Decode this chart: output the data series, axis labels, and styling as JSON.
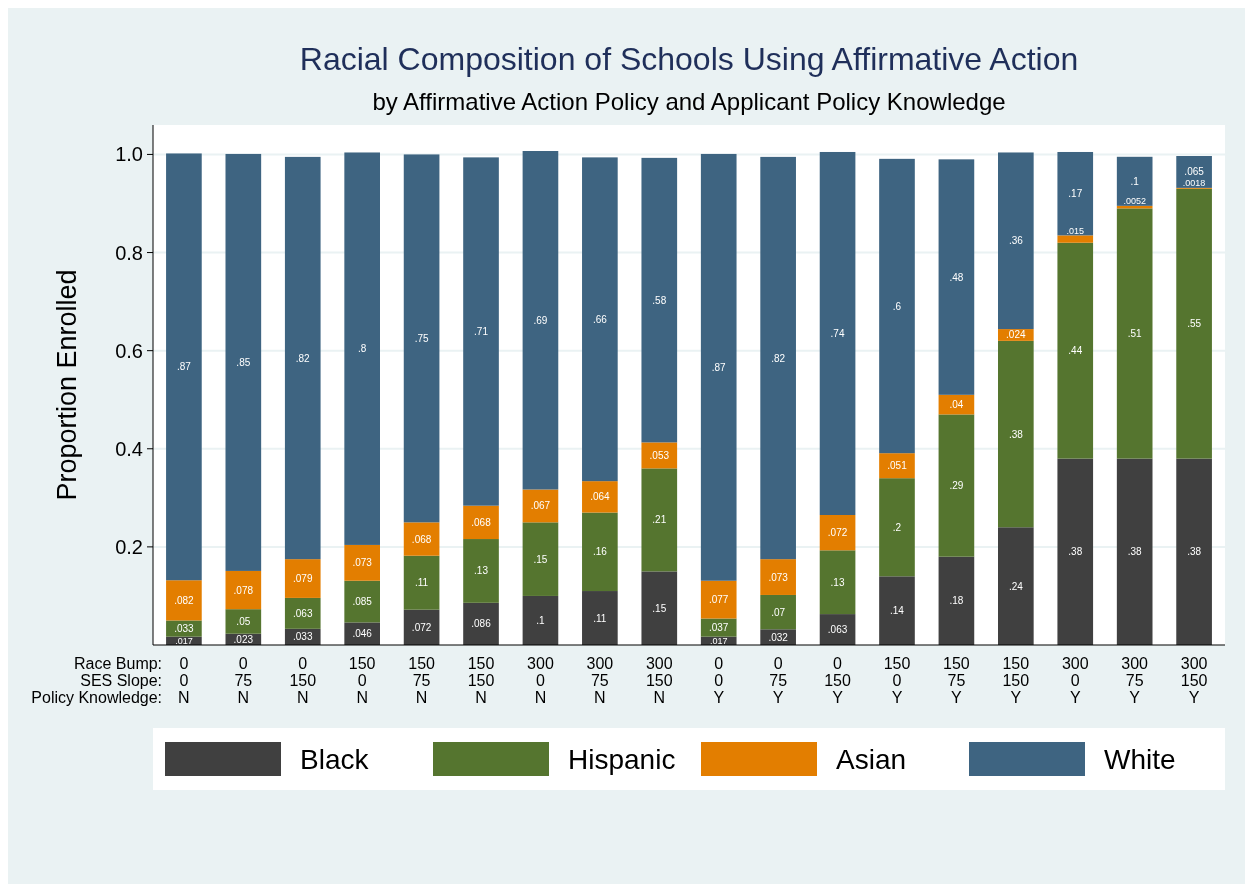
{
  "chart_data": {
    "type": "bar",
    "stacked": true,
    "title": "Racial Composition of Schools Using Affirmative Action",
    "subtitle": "by Affirmative Action Policy and Applicant Policy Knowledge",
    "ylabel": "Proportion Enrolled",
    "xlabel": "Race Bump:\nSES Slope:\nPolicy Knowledge:",
    "categories": [
      "0\n0\nN",
      "0\n75\nN",
      "0\n150\nN",
      "150\n0\nN",
      "150\n75\nN",
      "150\n150\nN",
      "300\n0\nN",
      "300\n75\nN",
      "300\n150\nN",
      "0\n0\nY",
      "0\n75\nY",
      "0\n150\nY",
      "150\n0\nY",
      "150\n75\nY",
      "150\n150\nY",
      "300\n0\nY",
      "300\n75\nY",
      "300\n150\nY"
    ],
    "series": [
      {
        "name": "Black",
        "color": "#404040",
        "values": [
          0.017,
          0.023,
          0.033,
          0.046,
          0.072,
          0.086,
          0.1,
          0.11,
          0.15,
          0.017,
          0.032,
          0.063,
          0.14,
          0.18,
          0.24,
          0.38,
          0.38,
          0.38
        ],
        "value_labels": [
          ".017",
          ".023",
          ".033",
          ".046",
          ".072",
          ".086",
          ".1",
          ".11",
          ".15",
          ".017",
          ".032",
          ".063",
          ".14",
          ".18",
          ".24",
          ".38",
          ".38",
          ".38"
        ]
      },
      {
        "name": "Hispanic",
        "color": "#55752f",
        "values": [
          0.033,
          0.05,
          0.063,
          0.085,
          0.11,
          0.13,
          0.15,
          0.16,
          0.21,
          0.037,
          0.07,
          0.13,
          0.2,
          0.29,
          0.38,
          0.44,
          0.51,
          0.55
        ],
        "value_labels": [
          ".033",
          ".05",
          ".063",
          ".085",
          ".11",
          ".13",
          ".15",
          ".16",
          ".21",
          ".037",
          ".07",
          ".13",
          ".2",
          ".29",
          ".38",
          ".44",
          ".51",
          ".55"
        ]
      },
      {
        "name": "Asian",
        "color": "#e37e00",
        "values": [
          0.082,
          0.078,
          0.079,
          0.073,
          0.068,
          0.068,
          0.067,
          0.064,
          0.053,
          0.077,
          0.073,
          0.072,
          0.051,
          0.04,
          0.024,
          0.015,
          0.0052,
          0.0018
        ],
        "value_labels": [
          ".082",
          ".078",
          ".079",
          ".073",
          ".068",
          ".068",
          ".067",
          ".064",
          ".053",
          ".077",
          ".073",
          ".072",
          ".051",
          ".04",
          ".024",
          ".015",
          ".0052",
          ".0018"
        ]
      },
      {
        "name": "White",
        "color": "#3e6481",
        "values": [
          0.87,
          0.85,
          0.82,
          0.8,
          0.75,
          0.71,
          0.69,
          0.66,
          0.58,
          0.87,
          0.82,
          0.74,
          0.6,
          0.48,
          0.36,
          0.17,
          0.1,
          0.065
        ],
        "value_labels": [
          ".87",
          ".85",
          ".82",
          ".8",
          ".75",
          ".71",
          ".69",
          ".66",
          ".58",
          ".87",
          ".82",
          ".74",
          ".6",
          ".48",
          ".36",
          ".17",
          ".1",
          ".065"
        ]
      }
    ],
    "ylim": [
      0,
      1.06
    ],
    "yticks": [
      {
        "value": 0.2,
        "label": "0.2"
      },
      {
        "value": 0.4,
        "label": "0.4"
      },
      {
        "value": 0.6,
        "label": "0.6"
      },
      {
        "value": 0.8,
        "label": "0.8"
      },
      {
        "value": 1,
        "label": "1.0"
      }
    ],
    "grid": "y",
    "legend": "bottom"
  }
}
